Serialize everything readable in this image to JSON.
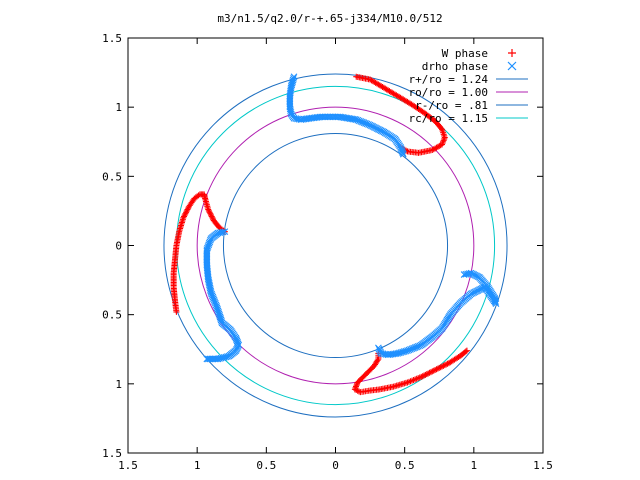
{
  "chart_data": {
    "type": "scatter",
    "title": "m3/n1.5/q2.0/r-+.65-j334/M10.0/512",
    "xlim": [
      -1.5,
      1.5
    ],
    "ylim": [
      -1.5,
      1.5
    ],
    "x_ticks": [
      {
        "value": -1.5,
        "label": "1.5"
      },
      {
        "value": -1.0,
        "label": "1"
      },
      {
        "value": -0.5,
        "label": "0.5"
      },
      {
        "value": 0,
        "label": "0"
      },
      {
        "value": 0.5,
        "label": "0.5"
      },
      {
        "value": 1.0,
        "label": "1"
      },
      {
        "value": 1.5,
        "label": "1.5"
      }
    ],
    "y_ticks": [
      {
        "value": 1.5,
        "label": "1.5"
      },
      {
        "value": 1.0,
        "label": "1"
      },
      {
        "value": 0.5,
        "label": "0.5"
      },
      {
        "value": 0,
        "label": "0"
      },
      {
        "value": -0.5,
        "label": "0.5"
      },
      {
        "value": -1.0,
        "label": "1"
      },
      {
        "value": -1.5,
        "label": "1.5"
      }
    ],
    "grid": false,
    "legend_position": "top-right",
    "series": [
      {
        "name": "W phase",
        "kind": "points",
        "marker": "+",
        "color": "#ff0000",
        "arms": [
          [
            [
              0.15,
              1.22
            ],
            [
              0.25,
              1.2
            ],
            [
              0.35,
              1.14
            ],
            [
              0.45,
              1.08
            ],
            [
              0.55,
              1.02
            ],
            [
              0.64,
              0.96
            ],
            [
              0.72,
              0.9
            ],
            [
              0.77,
              0.84
            ],
            [
              0.79,
              0.78
            ],
            [
              0.77,
              0.73
            ],
            [
              0.7,
              0.69
            ],
            [
              0.6,
              0.67
            ],
            [
              0.52,
              0.68
            ],
            [
              0.47,
              0.71
            ]
          ],
          [
            [
              0.95,
              -0.76
            ],
            [
              0.9,
              -0.8
            ],
            [
              0.82,
              -0.85
            ],
            [
              0.72,
              -0.9
            ],
            [
              0.62,
              -0.95
            ],
            [
              0.52,
              -0.99
            ],
            [
              0.42,
              -1.02
            ],
            [
              0.32,
              -1.04
            ],
            [
              0.24,
              -1.05
            ],
            [
              0.18,
              -1.06
            ],
            [
              0.14,
              -1.04
            ],
            [
              0.16,
              -0.99
            ],
            [
              0.22,
              -0.93
            ],
            [
              0.28,
              -0.87
            ],
            [
              0.31,
              -0.82
            ],
            [
              0.31,
              -0.78
            ]
          ],
          [
            [
              -1.15,
              -0.48
            ],
            [
              -1.16,
              -0.4
            ],
            [
              -1.17,
              -0.3
            ],
            [
              -1.17,
              -0.2
            ],
            [
              -1.16,
              -0.1
            ],
            [
              -1.15,
              0.0
            ],
            [
              -1.13,
              0.1
            ],
            [
              -1.1,
              0.2
            ],
            [
              -1.06,
              0.28
            ],
            [
              -1.02,
              0.34
            ],
            [
              -0.98,
              0.37
            ],
            [
              -0.95,
              0.37
            ],
            [
              -0.94,
              0.33
            ],
            [
              -0.92,
              0.26
            ],
            [
              -0.88,
              0.18
            ],
            [
              -0.84,
              0.13
            ],
            [
              -0.8,
              0.1
            ]
          ]
        ]
      },
      {
        "name": "drho phase",
        "kind": "points",
        "marker": "x",
        "color": "#1e90ff",
        "arms": [
          [
            [
              -0.3,
              1.22
            ],
            [
              -0.32,
              1.15
            ],
            [
              -0.33,
              1.08
            ],
            [
              -0.33,
              1.0
            ],
            [
              -0.32,
              0.95
            ],
            [
              -0.3,
              0.92
            ],
            [
              -0.25,
              0.91
            ],
            [
              -0.18,
              0.92
            ],
            [
              -0.1,
              0.93
            ],
            [
              0.03,
              0.93
            ],
            [
              0.15,
              0.91
            ],
            [
              0.25,
              0.87
            ],
            [
              0.35,
              0.82
            ],
            [
              0.43,
              0.77
            ],
            [
              0.47,
              0.71
            ],
            [
              0.49,
              0.66
            ]
          ],
          [
            [
              0.93,
              -0.21
            ],
            [
              0.98,
              -0.2
            ],
            [
              1.04,
              -0.23
            ],
            [
              1.1,
              -0.3
            ],
            [
              1.15,
              -0.38
            ],
            [
              1.16,
              -0.42
            ],
            [
              1.08,
              -0.3
            ],
            [
              0.98,
              -0.35
            ],
            [
              0.9,
              -0.42
            ],
            [
              0.83,
              -0.5
            ],
            [
              0.77,
              -0.6
            ],
            [
              0.7,
              -0.66
            ],
            [
              0.62,
              -0.72
            ],
            [
              0.52,
              -0.76
            ],
            [
              0.45,
              -0.78
            ],
            [
              0.38,
              -0.79
            ],
            [
              0.33,
              -0.78
            ],
            [
              0.31,
              -0.74
            ]
          ],
          [
            [
              -0.93,
              -0.82
            ],
            [
              -0.85,
              -0.82
            ],
            [
              -0.77,
              -0.8
            ],
            [
              -0.72,
              -0.76
            ],
            [
              -0.7,
              -0.72
            ],
            [
              -0.72,
              -0.67
            ],
            [
              -0.76,
              -0.61
            ],
            [
              -0.82,
              -0.56
            ],
            [
              -0.86,
              -0.44
            ],
            [
              -0.9,
              -0.34
            ],
            [
              -0.92,
              -0.24
            ],
            [
              -0.93,
              -0.14
            ],
            [
              -0.93,
              -0.03
            ],
            [
              -0.9,
              0.05
            ],
            [
              -0.85,
              0.09
            ],
            [
              -0.8,
              0.1
            ]
          ]
        ]
      },
      {
        "name": "r+/ro = 1.24",
        "kind": "circle",
        "radius": 1.24,
        "color": "#1e6fc0"
      },
      {
        "name": "ro/ro = 1.00",
        "kind": "circle",
        "radius": 1.0,
        "color": "#b020b0"
      },
      {
        "name": "r-/ro = .81",
        "kind": "circle",
        "radius": 0.81,
        "color": "#1e6fc0"
      },
      {
        "name": "rc/ro = 1.15",
        "kind": "circle",
        "radius": 1.15,
        "color": "#00c8c8"
      }
    ]
  }
}
